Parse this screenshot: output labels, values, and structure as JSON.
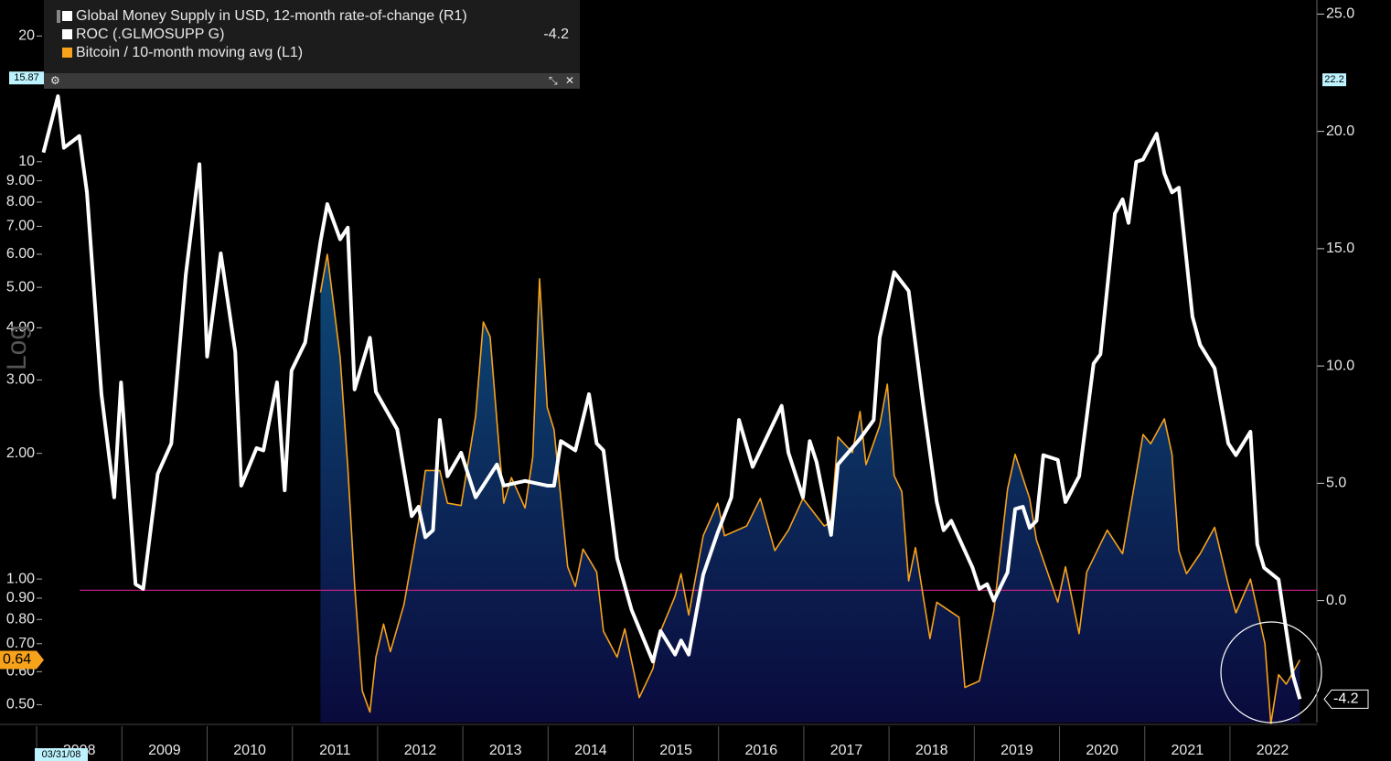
{
  "chart_data": {
    "type": "line",
    "xlim": [
      2007.57,
      2023.02
    ],
    "xticks": [
      2008,
      2009,
      2010,
      2011,
      2012,
      2013,
      2014,
      2015,
      2016,
      2017,
      2018,
      2019,
      2020,
      2021,
      2022
    ],
    "ylog": true,
    "ylim": [
      0.453,
      24.4
    ],
    "yticks": [
      20,
      10,
      {
        "value": 9,
        "label": "9.00"
      },
      {
        "value": 8,
        "label": "8.00"
      },
      {
        "value": 7,
        "label": "7.00"
      },
      {
        "value": 6,
        "label": "6.00"
      },
      {
        "value": 5,
        "label": "5.00"
      },
      {
        "value": 4,
        "label": "4.00"
      },
      {
        "value": 3,
        "label": "3.00"
      },
      {
        "value": 2,
        "label": "2.00"
      },
      {
        "value": 1,
        "label": "1.00"
      },
      {
        "value": 0.9,
        "label": "0.90"
      },
      {
        "value": 0.8,
        "label": "0.80"
      },
      {
        "value": 0.7,
        "label": "0.70"
      },
      {
        "value": 0.6,
        "label": "0.60"
      },
      {
        "value": 0.5,
        "label": "0.50"
      }
    ],
    "y2lim": [
      -5.2,
      25.6
    ],
    "y2ticks": [
      {
        "value": 25,
        "label": "25.0"
      },
      {
        "value": 20,
        "label": "20.0"
      },
      {
        "value": 15,
        "label": "15.0"
      },
      {
        "value": 10,
        "label": "10.0"
      },
      {
        "value": 5,
        "label": "5.0"
      },
      {
        "value": 0,
        "label": "0.0"
      }
    ],
    "y_axis_label": "Log",
    "reference_line": 0.94,
    "crosshair": {
      "y": 15.87,
      "y2": 22.2
    },
    "date_label": "03/31/08",
    "series": [
      {
        "name": "Global Money Supply in USD, 12-month rate-of-change (R1)",
        "study": "ROC (.GLMOSUPP G)",
        "color": "#ffffff",
        "axis": "y2",
        "x": [
          2008.08,
          2008.25,
          2008.32,
          2008.5,
          2008.59,
          2008.76,
          2008.91,
          2008.99,
          2009.16,
          2009.25,
          2009.42,
          2009.58,
          2009.75,
          2009.91,
          2010.0,
          2010.16,
          2010.33,
          2010.4,
          2010.58,
          2010.66,
          2010.82,
          2010.91,
          2010.99,
          2011.15,
          2011.33,
          2011.41,
          2011.56,
          2011.65,
          2011.73,
          2011.91,
          2011.98,
          2012.23,
          2012.4,
          2012.48,
          2012.56,
          2012.65,
          2012.73,
          2012.82,
          2012.98,
          2013.15,
          2013.4,
          2013.48,
          2013.73,
          2013.99,
          2014.07,
          2014.15,
          2014.32,
          2014.48,
          2014.57,
          2014.65,
          2014.81,
          2014.98,
          2015.23,
          2015.32,
          2015.49,
          2015.56,
          2015.65,
          2015.82,
          2015.99,
          2016.15,
          2016.24,
          2016.4,
          2016.74,
          2016.82,
          2016.99,
          2017.07,
          2017.15,
          2017.32,
          2017.4,
          2017.66,
          2017.82,
          2017.89,
          2018.06,
          2018.23,
          2018.4,
          2018.56,
          2018.64,
          2018.73,
          2018.98,
          2019.06,
          2019.15,
          2019.23,
          2019.39,
          2019.48,
          2019.57,
          2019.65,
          2019.73,
          2019.81,
          2019.98,
          2020.07,
          2020.23,
          2020.4,
          2020.48,
          2020.65,
          2020.74,
          2020.81,
          2020.9,
          2020.98,
          2021.14,
          2021.23,
          2021.32,
          2021.4,
          2021.56,
          2021.65,
          2021.82,
          2021.98,
          2022.07,
          2022.24,
          2022.32,
          2022.4,
          2022.57,
          2022.74,
          2022.82
        ],
        "values": [
          19.1,
          21.5,
          19.3,
          19.8,
          17.4,
          8.8,
          4.4,
          9.3,
          0.7,
          0.5,
          5.4,
          6.7,
          13.9,
          18.6,
          10.4,
          14.8,
          10.6,
          4.9,
          6.5,
          6.4,
          9.3,
          4.7,
          9.8,
          11.0,
          15.3,
          16.9,
          15.4,
          15.9,
          9.0,
          11.2,
          8.9,
          7.3,
          3.6,
          4.0,
          2.7,
          3.0,
          7.7,
          5.3,
          6.3,
          4.4,
          5.8,
          4.9,
          5.1,
          4.9,
          4.9,
          6.8,
          6.4,
          8.8,
          6.7,
          6.4,
          1.8,
          -0.4,
          -2.6,
          -1.3,
          -2.3,
          -1.7,
          -2.3,
          1.1,
          2.9,
          4.4,
          7.7,
          5.7,
          8.3,
          6.3,
          4.4,
          6.8,
          5.9,
          2.8,
          5.8,
          6.9,
          7.7,
          11.2,
          14.0,
          13.2,
          8.4,
          4.2,
          3.0,
          3.4,
          1.4,
          0.5,
          0.7,
          0.0,
          1.2,
          3.9,
          4.0,
          3.1,
          3.4,
          6.2,
          6.0,
          4.2,
          5.3,
          10.1,
          10.5,
          16.5,
          17.1,
          16.1,
          18.7,
          18.8,
          19.9,
          18.2,
          17.4,
          17.6,
          12.1,
          10.9,
          9.9,
          6.7,
          6.2,
          7.2,
          2.4,
          1.4,
          0.9,
          -3.2,
          -4.2
        ]
      },
      {
        "name": "Bitcoin / 10-month moving avg (L1)",
        "color": "#f7a21b",
        "axis": "y",
        "area": true,
        "x": [
          2011.33,
          2011.41,
          2011.56,
          2011.65,
          2011.73,
          2011.82,
          2011.91,
          2011.98,
          2012.07,
          2012.15,
          2012.31,
          2012.48,
          2012.56,
          2012.73,
          2012.82,
          2012.98,
          2013.15,
          2013.24,
          2013.32,
          2013.4,
          2013.48,
          2013.57,
          2013.73,
          2013.82,
          2013.9,
          2013.99,
          2014.07,
          2014.23,
          2014.32,
          2014.41,
          2014.57,
          2014.65,
          2014.81,
          2014.9,
          2015.07,
          2015.23,
          2015.32,
          2015.49,
          2015.56,
          2015.65,
          2015.82,
          2015.99,
          2016.07,
          2016.33,
          2016.49,
          2016.66,
          2016.82,
          2016.99,
          2017.24,
          2017.32,
          2017.4,
          2017.57,
          2017.66,
          2017.73,
          2017.89,
          2017.98,
          2018.06,
          2018.15,
          2018.23,
          2018.31,
          2018.48,
          2018.56,
          2018.82,
          2018.89,
          2019.06,
          2019.23,
          2019.39,
          2019.48,
          2019.65,
          2019.73,
          2019.98,
          2020.07,
          2020.23,
          2020.32,
          2020.56,
          2020.74,
          2020.98,
          2021.07,
          2021.23,
          2021.32,
          2021.4,
          2021.49,
          2021.65,
          2021.82,
          2021.98,
          2022.07,
          2022.24,
          2022.41,
          2022.48,
          2022.57,
          2022.66,
          2022.82
        ],
        "values": [
          4.86,
          6.0,
          3.41,
          1.86,
          0.97,
          0.54,
          0.48,
          0.65,
          0.78,
          0.67,
          0.87,
          1.37,
          1.82,
          1.82,
          1.52,
          1.5,
          2.46,
          4.13,
          3.81,
          2.39,
          1.52,
          1.75,
          1.48,
          1.96,
          5.24,
          2.58,
          2.28,
          1.07,
          0.96,
          1.18,
          1.04,
          0.75,
          0.65,
          0.76,
          0.52,
          0.61,
          0.75,
          0.91,
          1.03,
          0.82,
          1.27,
          1.52,
          1.27,
          1.34,
          1.56,
          1.17,
          1.31,
          1.56,
          1.34,
          1.37,
          2.19,
          2.01,
          2.52,
          1.88,
          2.33,
          2.93,
          1.77,
          1.62,
          0.99,
          1.19,
          0.72,
          0.88,
          0.81,
          0.55,
          0.57,
          0.84,
          1.64,
          1.99,
          1.56,
          1.24,
          0.88,
          1.07,
          0.74,
          1.04,
          1.31,
          1.15,
          2.22,
          2.11,
          2.42,
          1.99,
          1.17,
          1.03,
          1.15,
          1.33,
          0.97,
          0.83,
          1.0,
          0.7,
          0.45,
          0.59,
          0.56,
          0.64
        ]
      }
    ]
  }
}
